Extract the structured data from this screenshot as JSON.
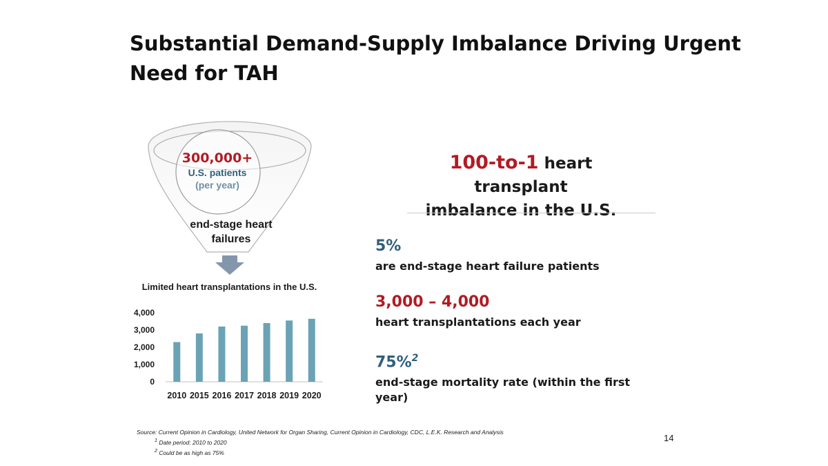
{
  "slide": {
    "title_line1": "Substantial Demand-Supply Imbalance Driving Urgent",
    "title_line2": "Need for TAH",
    "page_number": "14"
  },
  "funnel": {
    "count": "300,000+",
    "subtitle": "U.S. patients",
    "period": "(per year)",
    "label_line1": "end-stage heart",
    "label_line2": "failures"
  },
  "imbalance": {
    "highlight": "100-to-1",
    "text_line1": "heart transplant",
    "text_line2": "imbalance in the U.S."
  },
  "stats": [
    {
      "value": "5%",
      "description": "are end-stage heart failure patients",
      "sup": ""
    },
    {
      "value": "3,000 – 4,000",
      "description": "heart transplantations each year",
      "sup": ""
    },
    {
      "value": "75%",
      "description": "end-stage mortality rate (within the first year)",
      "sup": "2"
    }
  ],
  "footnotes": {
    "source": "Source: Current Opinion in Cardiology, United Network for Organ Sharing, Current Opinion in Cardiology, CDC, L.E.K. Research and Analysis",
    "note1_mark": "1",
    "note1": "Date period: 2010 to 2020",
    "note2_mark": "2",
    "note2": "Could be as high as 75%"
  },
  "colors": {
    "bar": "#6aa3b5",
    "accent_red": "#b11b24",
    "accent_blue": "#2f5f7f",
    "arrow": "#8496ab"
  },
  "chart_data": {
    "type": "bar",
    "title": "Limited heart transplantations in the U.S.",
    "categories": [
      "2010",
      "2015",
      "2016",
      "2017",
      "2018",
      "2019",
      "2020"
    ],
    "values": [
      2300,
      2800,
      3200,
      3250,
      3400,
      3550,
      3650
    ],
    "yticks": [
      0,
      1000,
      2000,
      3000,
      4000
    ],
    "ytick_labels": [
      "0",
      "1,000",
      "2,000",
      "3,000",
      "4,000"
    ],
    "ylim": [
      0,
      4000
    ],
    "xlabel": "",
    "ylabel": "",
    "grid": false
  }
}
